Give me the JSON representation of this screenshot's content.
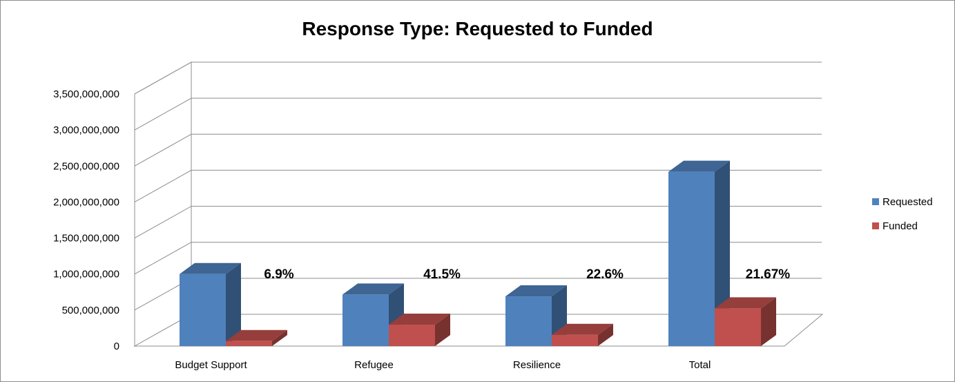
{
  "chart_data": {
    "type": "bar",
    "title": "Response Type: Requested to Funded",
    "categories": [
      "Budget Support",
      "Refugee",
      "Resilience",
      "Total"
    ],
    "series": [
      {
        "name": "Requested",
        "color": "#4f81bd",
        "values": [
          1000000000,
          715000000,
          690000000,
          2420000000
        ]
      },
      {
        "name": "Funded",
        "color": "#c0504d",
        "values": [
          69000000,
          297000000,
          156000000,
          524000000
        ]
      }
    ],
    "annotations": [
      "6.9%",
      "41.5%",
      "22.6%",
      "21.67%"
    ],
    "yticks": [
      "0",
      "500,000,000",
      "1,000,000,000",
      "1,500,000,000",
      "2,000,000,000",
      "2,500,000,000",
      "3,000,000,000",
      "3,500,000,000"
    ],
    "ylim": [
      0,
      3500000000
    ],
    "legend_position": "right",
    "grid": true
  }
}
